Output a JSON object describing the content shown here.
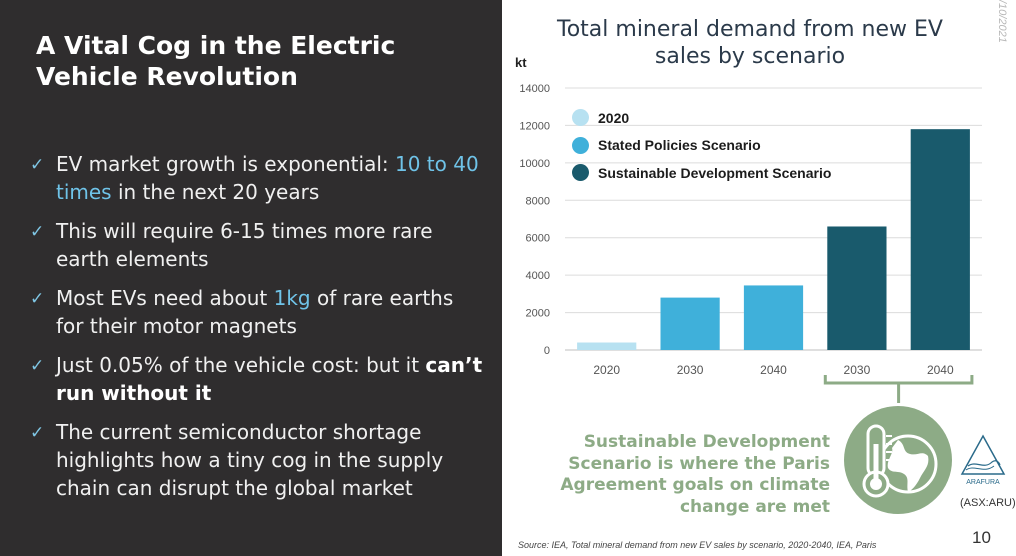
{
  "slide": {
    "title": "A Vital Cog in the Electric Vehicle Revolution",
    "bullets": [
      {
        "parts": [
          {
            "t": "EV market growth is exponential: "
          },
          {
            "t": "10 to 40 times",
            "hl": true
          },
          {
            "t": " in the next 20 years"
          }
        ]
      },
      {
        "parts": [
          {
            "t": "This will require 6-15 times more rare earth elements"
          }
        ]
      },
      {
        "parts": [
          {
            "t": "Most EVs need about "
          },
          {
            "t": "1kg",
            "hl": true
          },
          {
            "t": " of rare earths for their motor magnets"
          }
        ]
      },
      {
        "parts": [
          {
            "t": "Just 0.05% of the vehicle cost: but it "
          },
          {
            "t": "can’t run without it",
            "strong": true
          }
        ]
      },
      {
        "parts": [
          {
            "t": "The current semiconductor shortage highlights how a tiny cog in the supply chain can disrupt the global market"
          }
        ]
      }
    ],
    "date_tag": "/10/2021",
    "sds_note": "Sustainable Development Scenario is where the Paris Agreement goals on climate change are met",
    "ticker": "(ASX:ARU)",
    "logo_text": "ARAFURA",
    "source": "Source: IEA, Total mineral demand from new EV sales by scenario, 2020-2040, IEA, Paris",
    "page_number": "10",
    "icons": {
      "check": "check-icon",
      "climate": "thermometer-globe-icon",
      "logo": "arafura-logo-icon"
    },
    "colors": {
      "panel": "#2f2d2e",
      "highlight": "#6fc3e8",
      "note": "#8dab86"
    }
  },
  "chart_data": {
    "type": "bar",
    "title": "Total mineral demand from new EV sales by scenario",
    "ylabel": "kt",
    "xlabel": "",
    "ylim": [
      0,
      14000
    ],
    "yticks": [
      0,
      2000,
      4000,
      6000,
      8000,
      10000,
      12000,
      14000
    ],
    "categories": [
      "2020",
      "2030",
      "2040",
      "2030",
      "2040"
    ],
    "values": [
      400,
      2800,
      3450,
      6600,
      11800
    ],
    "series_of_bar": [
      "2020",
      "Stated Policies Scenario",
      "Stated Policies Scenario",
      "Sustainable Development Scenario",
      "Sustainable Development Scenario"
    ],
    "legend": [
      {
        "name": "2020",
        "color": "#b7e1f1"
      },
      {
        "name": "Stated Policies Scenario",
        "color": "#3fb0da"
      },
      {
        "name": "Sustainable Development Scenario",
        "color": "#195a6c"
      }
    ],
    "grid": true,
    "legend_position": "top-left"
  }
}
